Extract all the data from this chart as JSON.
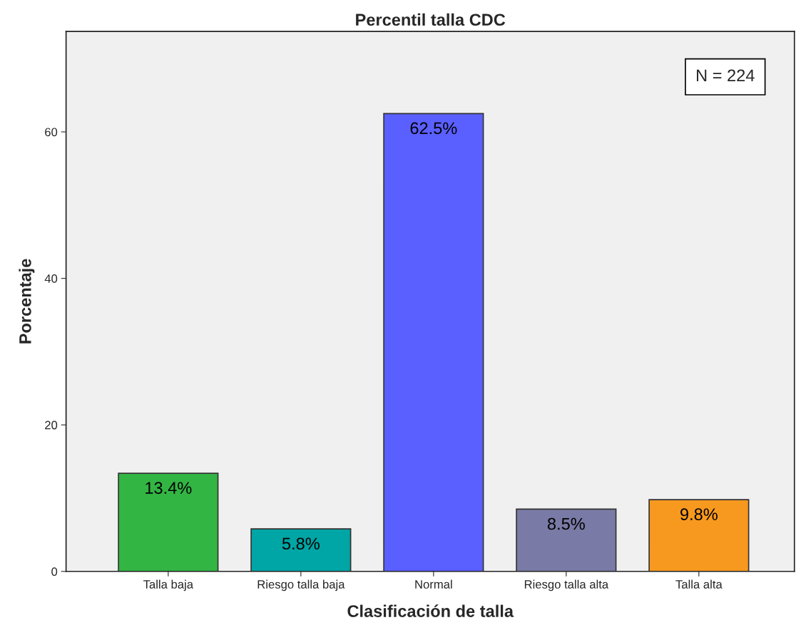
{
  "chart_data": {
    "type": "bar",
    "title": "Percentil talla CDC",
    "xlabel": "Clasificación de talla",
    "ylabel": "Porcentaje",
    "categories": [
      "Talla baja",
      "Riesgo talla baja",
      "Normal",
      "Riesgo talla alta",
      "Talla alta"
    ],
    "values": [
      13.4,
      5.8,
      62.5,
      8.5,
      9.8
    ],
    "value_labels": [
      "13.4%",
      "5.8%",
      "62.5%",
      "8.5%",
      "9.8%"
    ],
    "colors": [
      "#33b544",
      "#00a5a5",
      "#5a5fff",
      "#7a7aa6",
      "#f7991f"
    ],
    "ylim": [
      0,
      73.7
    ],
    "yticks": [
      0,
      20,
      40,
      60
    ],
    "grid": false,
    "legend": false,
    "annotations": [
      "N = 224"
    ]
  }
}
